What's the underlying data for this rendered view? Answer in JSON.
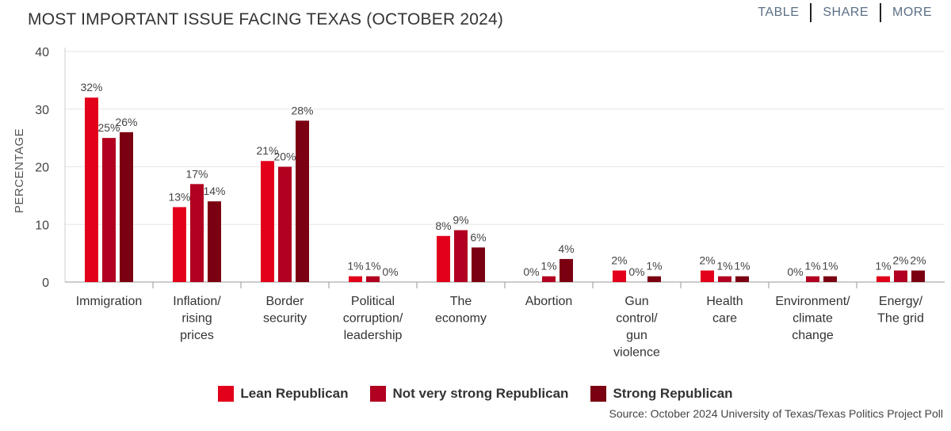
{
  "header": {
    "title": "MOST IMPORTANT ISSUE FACING TEXAS (OCTOBER 2024)",
    "nav": [
      "TABLE",
      "SHARE",
      "MORE"
    ]
  },
  "colors": {
    "lean": "#e2001a",
    "not_very_strong": "#b10020",
    "strong": "#7a0012"
  },
  "chart_data": {
    "type": "bar",
    "title": "MOST IMPORTANT ISSUE FACING TEXAS (OCTOBER 2024)",
    "ylabel": "PERCENTAGE",
    "xlabel": "",
    "ylim": [
      0,
      40
    ],
    "yticks": [
      0,
      10,
      20,
      30,
      40
    ],
    "grid": true,
    "legend_position": "bottom",
    "categories": [
      [
        "Immigration"
      ],
      [
        "Inflation/",
        "rising",
        "prices"
      ],
      [
        "Border",
        "security"
      ],
      [
        "Political",
        "corruption/",
        "leadership"
      ],
      [
        "The",
        "economy"
      ],
      [
        "Abortion"
      ],
      [
        "Gun",
        "control/",
        "gun",
        "violence"
      ],
      [
        "Health",
        "care"
      ],
      [
        "Environment/",
        "climate",
        "change"
      ],
      [
        "Energy/",
        "The grid"
      ]
    ],
    "series": [
      {
        "name": "Lean Republican",
        "values": [
          32,
          13,
          21,
          1,
          8,
          0,
          2,
          2,
          0,
          1
        ]
      },
      {
        "name": "Not very strong Republican",
        "values": [
          25,
          17,
          20,
          1,
          9,
          1,
          0,
          1,
          1,
          2
        ]
      },
      {
        "name": "Strong Republican",
        "values": [
          26,
          14,
          28,
          0,
          6,
          4,
          1,
          1,
          1,
          2
        ]
      }
    ]
  },
  "source": "Source: October 2024 University of Texas/Texas Politics Project Poll"
}
